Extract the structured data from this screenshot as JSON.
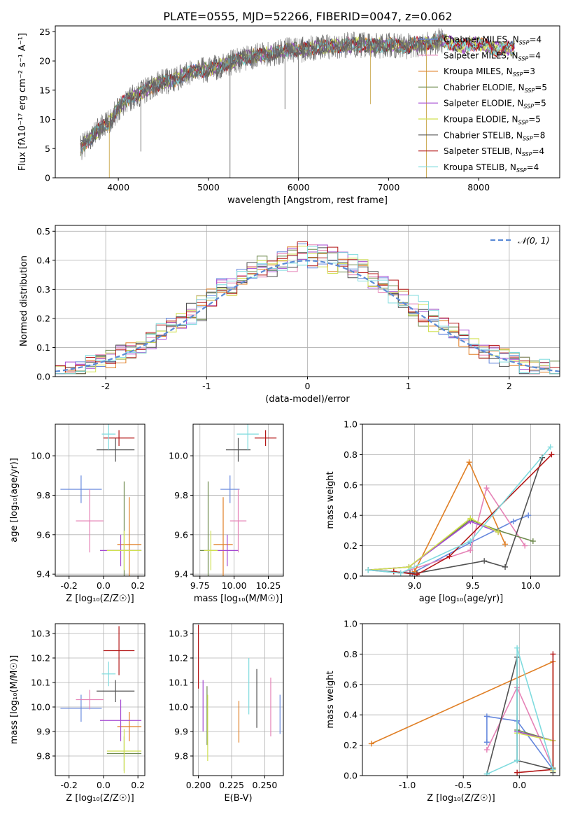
{
  "figure_title": "PLATE=0555, MJD=52266, FIBERID=0047, z=0.062",
  "models": [
    {
      "name": "Chabrier MILES",
      "nssp": "4",
      "color": "#6688dd"
    },
    {
      "name": "Salpeter MILES",
      "nssp": "4",
      "color": "#e582b6"
    },
    {
      "name": "Kroupa MILES",
      "nssp": "3",
      "color": "#e07f25"
    },
    {
      "name": "Chabrier ELODIE",
      "nssp": "5",
      "color": "#6f8a4e"
    },
    {
      "name": "Salpeter ELODIE",
      "nssp": "5",
      "color": "#a54ad2"
    },
    {
      "name": "Kroupa ELODIE",
      "nssp": "5",
      "color": "#d0e052"
    },
    {
      "name": "Chabrier STELIB",
      "nssp": "8",
      "color": "#505050"
    },
    {
      "name": "Salpeter STELIB",
      "nssp": "4",
      "color": "#b41818"
    },
    {
      "name": "Kroupa STELIB",
      "nssp": "4",
      "color": "#7fdbde"
    }
  ],
  "chart_data": [
    {
      "id": "spectrum",
      "type": "line",
      "xlabel": "wavelength [Angstrom, rest frame]",
      "ylabel": "Flux [fλ10⁻¹⁷ erg cm⁻² s⁻¹ A⁻¹]",
      "xlim": [
        3300,
        8900
      ],
      "ylim": [
        0,
        26
      ],
      "xticks": [
        4000,
        5000,
        6000,
        7000,
        8000
      ],
      "yticks": [
        0,
        5,
        10,
        15,
        20,
        25
      ],
      "legend": "right",
      "continuum": {
        "x": [
          3580,
          3700,
          3800,
          3900,
          4000,
          4100,
          4200,
          4300,
          4400,
          4500,
          4600,
          4700,
          4800,
          4900,
          5000,
          5100,
          5200,
          5300,
          5400,
          5500,
          5600,
          5700,
          5800,
          5900,
          6000,
          6200,
          6400,
          6600,
          6800,
          7000,
          7200,
          7400,
          7600,
          7800,
          8000,
          8200,
          8400
        ],
        "y": [
          5,
          7,
          8.5,
          9.5,
          12,
          13.5,
          14,
          15,
          15.8,
          16.5,
          16.5,
          17.5,
          18,
          18.5,
          18.5,
          19,
          19.5,
          20,
          20.5,
          20.8,
          21,
          21.3,
          21.5,
          22,
          21.8,
          22.3,
          22.5,
          22.8,
          22.6,
          22.7,
          22.5,
          23,
          23.5,
          22.5,
          23,
          22,
          22.2
        ]
      },
      "observed_range": [
        3580,
        7600
      ],
      "model_range": [
        3580,
        8400
      ]
    },
    {
      "id": "residual-histogram",
      "type": "line",
      "xlabel": "(data-model)/error",
      "ylabel": "Normed distribution",
      "xlim": [
        -2.5,
        2.5
      ],
      "ylim": [
        0,
        0.52
      ],
      "xticks": [
        -2,
        -1,
        0,
        1,
        2
      ],
      "yticks": [
        0,
        0.1,
        0.2,
        0.3,
        0.4,
        0.5
      ],
      "series": [
        {
          "name": "𝒩(0, 1)",
          "distribution": "normal",
          "mean": 0,
          "sd": 1
        }
      ],
      "legend": "top-right"
    },
    {
      "id": "age-vs-Z",
      "type": "scatter",
      "xlabel": "Z [log₁₀(Z/Z☉)]",
      "ylabel": "age  [log₁₀(age/yr)]",
      "xlim": [
        -0.28,
        0.24
      ],
      "ylim": [
        9.39,
        10.16
      ],
      "xticks": [
        -0.2,
        0.0,
        0.2
      ],
      "yticks": [
        9.4,
        9.6,
        9.8,
        10.0
      ],
      "points": [
        {
          "x": -0.13,
          "y": 9.83,
          "xerr": 0.12,
          "yerr": 0.07
        },
        {
          "x": -0.08,
          "y": 9.67,
          "xerr": 0.08,
          "yerr": 0.16
        },
        {
          "x": 0.15,
          "y": 9.55,
          "xerr": 0.07,
          "yerr": 0.24
        },
        {
          "x": 0.12,
          "y": 9.52,
          "xerr": 0.1,
          "yerr": 0.35
        },
        {
          "x": 0.1,
          "y": 9.52,
          "xerr": 0.12,
          "yerr": 0.08
        },
        {
          "x": 0.12,
          "y": 9.52,
          "xerr": 0.1,
          "yerr": 0.1
        },
        {
          "x": 0.07,
          "y": 10.03,
          "xerr": 0.11,
          "yerr": 0.06
        },
        {
          "x": 0.09,
          "y": 10.09,
          "xerr": 0.09,
          "yerr": 0.04
        },
        {
          "x": 0.03,
          "y": 10.11,
          "xerr": 0.04,
          "yerr": 0.08
        }
      ]
    },
    {
      "id": "age-vs-mass",
      "type": "scatter",
      "xlabel": "mass [log₁₀(M/M☉)]",
      "ylabel": "",
      "xlim": [
        9.7,
        10.36
      ],
      "ylim": [
        9.39,
        10.16
      ],
      "xticks": [
        9.75,
        10.0,
        10.25
      ],
      "yticks": [
        9.4,
        9.6,
        9.8,
        10.0
      ],
      "points": [
        {
          "x": 9.97,
          "y": 9.83,
          "xerr": 0.07,
          "yerr": 0.07
        },
        {
          "x": 10.03,
          "y": 9.67,
          "xerr": 0.06,
          "yerr": 0.16
        },
        {
          "x": 9.92,
          "y": 9.55,
          "xerr": 0.07,
          "yerr": 0.24
        },
        {
          "x": 9.81,
          "y": 9.52,
          "xerr": 0.06,
          "yerr": 0.35
        },
        {
          "x": 9.95,
          "y": 9.52,
          "xerr": 0.08,
          "yerr": 0.08
        },
        {
          "x": 9.83,
          "y": 9.52,
          "xerr": 0.05,
          "yerr": 0.1
        },
        {
          "x": 10.03,
          "y": 10.03,
          "xerr": 0.09,
          "yerr": 0.06
        },
        {
          "x": 10.23,
          "y": 10.09,
          "xerr": 0.08,
          "yerr": 0.04
        },
        {
          "x": 10.1,
          "y": 10.11,
          "xerr": 0.08,
          "yerr": 0.08
        }
      ]
    },
    {
      "id": "weight-vs-age",
      "type": "line",
      "xlabel": "age  [log₁₀(age/yr)]",
      "ylabel": "mass weight",
      "xlim": [
        8.55,
        10.25
      ],
      "ylim": [
        0,
        1.0
      ],
      "xticks": [
        9.0,
        9.5,
        10.0
      ],
      "yticks": [
        0.0,
        0.2,
        0.4,
        0.6,
        0.8,
        1.0
      ],
      "series": [
        {
          "x": [
            8.6,
            8.98,
            9.48,
            9.85,
            9.98
          ],
          "y": [
            0.04,
            0.02,
            0.22,
            0.36,
            0.4
          ]
        },
        {
          "x": [
            8.6,
            8.88,
            9.48,
            9.62,
            9.95
          ],
          "y": [
            0.04,
            0.02,
            0.17,
            0.58,
            0.2
          ]
        },
        {
          "x": [
            9.0,
            9.47,
            9.78
          ],
          "y": [
            0.03,
            0.75,
            0.21
          ]
        },
        {
          "x": [
            8.6,
            8.95,
            9.48,
            9.72,
            10.02
          ],
          "y": [
            0.04,
            0.06,
            0.37,
            0.3,
            0.23
          ]
        },
        {
          "x": [
            8.6,
            8.95,
            9.48,
            9.72
          ],
          "y": [
            0.04,
            0.06,
            0.36,
            0.29
          ]
        },
        {
          "x": [
            8.6,
            8.95,
            9.48,
            9.72
          ],
          "y": [
            0.04,
            0.06,
            0.38,
            0.29
          ]
        },
        {
          "x": [
            8.6,
            8.96,
            9.02,
            9.6,
            9.78,
            10.1
          ],
          "y": [
            0.04,
            0.02,
            0.02,
            0.1,
            0.06,
            0.78
          ]
        },
        {
          "x": [
            8.82,
            9.02,
            9.3,
            10.18
          ],
          "y": [
            0.03,
            0.01,
            0.13,
            0.8
          ]
        },
        {
          "x": [
            8.6,
            8.88,
            9.48,
            10.17
          ],
          "y": [
            0.04,
            0.02,
            0.23,
            0.85
          ]
        }
      ]
    },
    {
      "id": "mass-vs-Z",
      "type": "scatter",
      "xlabel": "Z [log₁₀(Z/Z☉)]",
      "ylabel": "mass [log₁₀(M/M☉)]",
      "xlim": [
        -0.28,
        0.24
      ],
      "ylim": [
        9.72,
        10.34
      ],
      "xticks": [
        -0.2,
        0.0,
        0.2
      ],
      "yticks": [
        9.8,
        9.9,
        10.0,
        10.1,
        10.2,
        10.3
      ],
      "points": [
        {
          "x": -0.13,
          "y": 9.995,
          "xerr": 0.12,
          "yerr": 0.055
        },
        {
          "x": -0.08,
          "y": 10.03,
          "xerr": 0.08,
          "yerr": 0.04
        },
        {
          "x": 0.15,
          "y": 9.92,
          "xerr": 0.07,
          "yerr": 0.06
        },
        {
          "x": 0.12,
          "y": 9.81,
          "xerr": 0.1,
          "yerr": 0.07
        },
        {
          "x": 0.1,
          "y": 9.945,
          "xerr": 0.12,
          "yerr": 0.085
        },
        {
          "x": 0.12,
          "y": 9.82,
          "xerr": 0.1,
          "yerr": 0.09
        },
        {
          "x": 0.07,
          "y": 10.065,
          "xerr": 0.11,
          "yerr": 0.045
        },
        {
          "x": 0.09,
          "y": 10.23,
          "xerr": 0.09,
          "yerr": 0.1
        },
        {
          "x": 0.03,
          "y": 10.135,
          "xerr": 0.04,
          "yerr": 0.05
        }
      ]
    },
    {
      "id": "mass-vs-ebv",
      "type": "scatter",
      "xlabel": "E(B-V)",
      "ylabel": "",
      "xlim": [
        0.196,
        0.264
      ],
      "ylim": [
        9.72,
        10.34
      ],
      "xticks": [
        0.2,
        0.225,
        0.25
      ],
      "yticks": [
        9.8,
        9.9,
        10.0,
        10.1,
        10.2,
        10.3
      ],
      "points": [
        {
          "x": 0.2615,
          "y": 9.97,
          "yerr": 0.08
        },
        {
          "x": 0.2545,
          "y": 10.0,
          "yerr": 0.12
        },
        {
          "x": 0.2305,
          "y": 9.94,
          "yerr": 0.085
        },
        {
          "x": 0.2065,
          "y": 9.965,
          "yerr": 0.12
        },
        {
          "x": 0.2035,
          "y": 10.005,
          "yerr": 0.105
        },
        {
          "x": 0.207,
          "y": 9.915,
          "yerr": 0.135
        },
        {
          "x": 0.244,
          "y": 10.035,
          "yerr": 0.12
        },
        {
          "x": 0.2,
          "y": 10.205,
          "yerr": 0.13
        },
        {
          "x": 0.238,
          "y": 10.085,
          "yerr": 0.115
        }
      ]
    },
    {
      "id": "weight-vs-Z",
      "type": "line",
      "xlabel": "Z [log₁₀(Z/Z☉)]",
      "ylabel": "mass weight",
      "xlim": [
        -1.4,
        0.36
      ],
      "ylim": [
        0,
        1.0
      ],
      "xticks": [
        -1.0,
        -0.5,
        0.0
      ],
      "yticks": [
        0.0,
        0.2,
        0.4,
        0.6,
        0.8,
        1.0
      ],
      "series": [
        {
          "x": [
            -0.29,
            -0.29,
            -0.02,
            -0.02,
            0.3
          ],
          "y": [
            0.22,
            0.39,
            0.36,
            0.36,
            0.04
          ]
        },
        {
          "x": [
            -0.29,
            -0.02,
            0.3
          ],
          "y": [
            0.17,
            0.58,
            0.05
          ]
        },
        {
          "x": [
            -1.32,
            0.3,
            0.3
          ],
          "y": [
            0.21,
            0.75,
            0.04
          ]
        },
        {
          "x": [
            -0.02,
            0.3,
            0.3
          ],
          "y": [
            0.3,
            0.23,
            0.05
          ]
        },
        {
          "x": [
            -0.02,
            0.3,
            0.3
          ],
          "y": [
            0.29,
            0.23,
            0.04
          ]
        },
        {
          "x": [
            -0.02,
            0.3,
            0.3
          ],
          "y": [
            0.28,
            0.23,
            0.03
          ]
        },
        {
          "x": [
            -0.29,
            -0.02,
            -0.02,
            0.3,
            0.3
          ],
          "y": [
            0.01,
            0.78,
            0.1,
            0.04,
            0.02
          ]
        },
        {
          "x": [
            -0.02,
            0.3,
            0.3
          ],
          "y": [
            0.02,
            0.04,
            0.8
          ]
        },
        {
          "x": [
            -0.29,
            -0.02,
            -0.02,
            0.3
          ],
          "y": [
            0.01,
            0.1,
            0.84,
            0.04
          ]
        }
      ]
    }
  ]
}
